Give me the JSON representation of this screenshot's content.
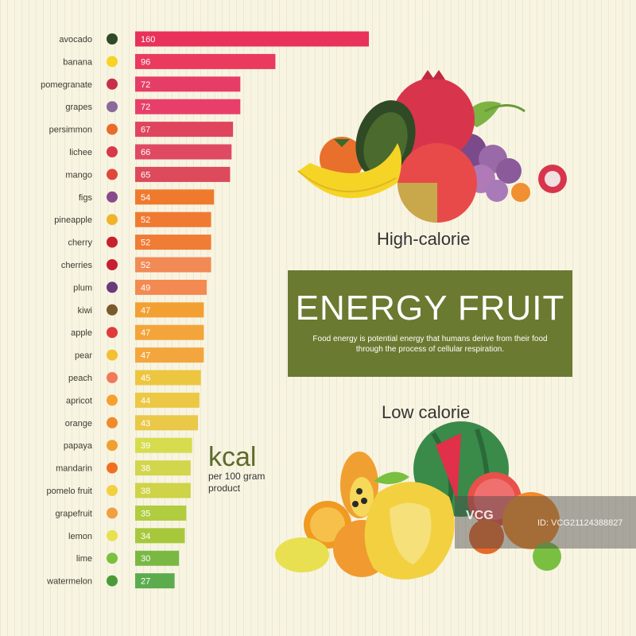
{
  "chart_data": {
    "type": "bar",
    "orientation": "horizontal",
    "categories": [
      "avocado",
      "banana",
      "pomegranate",
      "grapes",
      "persimmon",
      "lichee",
      "mango",
      "figs",
      "pineapple",
      "cherry",
      "cherries",
      "plum",
      "kiwi",
      "apple",
      "pear",
      "peach",
      "apricot",
      "orange",
      "papaya",
      "mandarin",
      "pomelo fruit",
      "grapefruit",
      "lemon",
      "lime",
      "watermelon"
    ],
    "values": [
      160,
      96,
      72,
      72,
      67,
      66,
      65,
      54,
      52,
      52,
      52,
      49,
      47,
      47,
      47,
      45,
      44,
      43,
      39,
      38,
      38,
      35,
      34,
      30,
      27
    ],
    "bar_colors": [
      "#e8325a",
      "#ea3a5e",
      "#e63d66",
      "#e83f6a",
      "#e0455e",
      "#df4a62",
      "#dc4a5c",
      "#ef7a2e",
      "#f07a32",
      "#f07c35",
      "#f28a55",
      "#f28a52",
      "#f3a033",
      "#f3a43a",
      "#f4a63e",
      "#ecc640",
      "#ecc844",
      "#eac848",
      "#d6dc4e",
      "#d2d64c",
      "#cfd348",
      "#b0cc3f",
      "#a8c83c",
      "#7ab844",
      "#5cac4e"
    ],
    "icon_colors": [
      "#2f4a25",
      "#f5d426",
      "#c8304a",
      "#8a6a9a",
      "#e86b2c",
      "#d63a4a",
      "#e0463a",
      "#8a4a8a",
      "#f0b42a",
      "#c82030",
      "#c82030",
      "#6a3a7a",
      "#7a5a2a",
      "#e03a3a",
      "#f2c030",
      "#f07a5a",
      "#f5a030",
      "#f08a2a",
      "#f0a030",
      "#f07020",
      "#f2d040",
      "#f0a040",
      "#e8e050",
      "#7ac040",
      "#4a9a3a"
    ]
  },
  "unit": {
    "main": "kcal",
    "sub": "per 100 gram product"
  },
  "panel": {
    "title": "ENERGY FRUIT",
    "description": "Food energy is potential energy that humans derive from their food through the process of cellular respiration."
  },
  "groups": {
    "high": "High-calorie",
    "low": "Low calorie"
  },
  "watermark": {
    "logo": "VCG",
    "id": "ID: VCG21124388827"
  },
  "colors": {
    "panel_bg": "#6a7a30",
    "background": "#f8f4e2"
  }
}
